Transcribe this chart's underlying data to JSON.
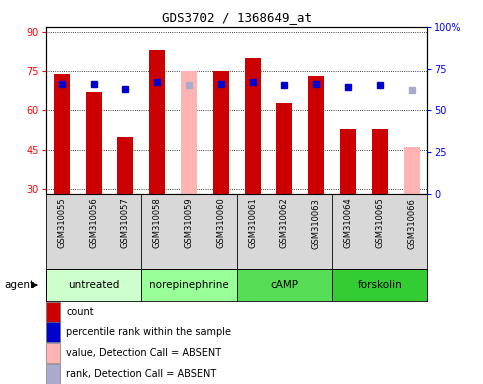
{
  "title": "GDS3702 / 1368649_at",
  "samples": [
    "GSM310055",
    "GSM310056",
    "GSM310057",
    "GSM310058",
    "GSM310059",
    "GSM310060",
    "GSM310061",
    "GSM310062",
    "GSM310063",
    "GSM310064",
    "GSM310065",
    "GSM310066"
  ],
  "bar_values": [
    74,
    67,
    50,
    83,
    null,
    75,
    80,
    63,
    73,
    53,
    53,
    null
  ],
  "absent_values": [
    null,
    null,
    null,
    null,
    75,
    null,
    null,
    null,
    null,
    null,
    null,
    46
  ],
  "rank_values": [
    66,
    66,
    63,
    67,
    null,
    66,
    67,
    65,
    66,
    64,
    65,
    null
  ],
  "absent_rank_values": [
    null,
    null,
    null,
    null,
    65,
    null,
    null,
    null,
    null,
    null,
    null,
    62
  ],
  "agents": [
    {
      "label": "untreated",
      "start": 0,
      "end": 2,
      "color": "#ccffcc"
    },
    {
      "label": "norepinephrine",
      "start": 3,
      "end": 5,
      "color": "#99ff99"
    },
    {
      "label": "cAMP",
      "start": 6,
      "end": 8,
      "color": "#55dd55"
    },
    {
      "label": "forskolin",
      "start": 9,
      "end": 11,
      "color": "#33cc33"
    }
  ],
  "ylim_left": [
    28,
    92
  ],
  "ylim_right": [
    0,
    100
  ],
  "yticks_left": [
    30,
    45,
    60,
    75,
    90
  ],
  "yticks_right": [
    0,
    25,
    50,
    75,
    100
  ],
  "bar_color": "#cc0000",
  "absent_bar_color": "#ffb3b3",
  "rank_color": "#0000cc",
  "absent_rank_color": "#aaaacc",
  "xtick_bg": "#d8d8d8",
  "plot_bg": "#ffffff",
  "bar_width": 0.5,
  "legend_items": [
    {
      "label": "count",
      "color": "#cc0000"
    },
    {
      "label": "percentile rank within the sample",
      "color": "#0000cc"
    },
    {
      "label": "value, Detection Call = ABSENT",
      "color": "#ffb3b3"
    },
    {
      "label": "rank, Detection Call = ABSENT",
      "color": "#aaaacc"
    }
  ]
}
